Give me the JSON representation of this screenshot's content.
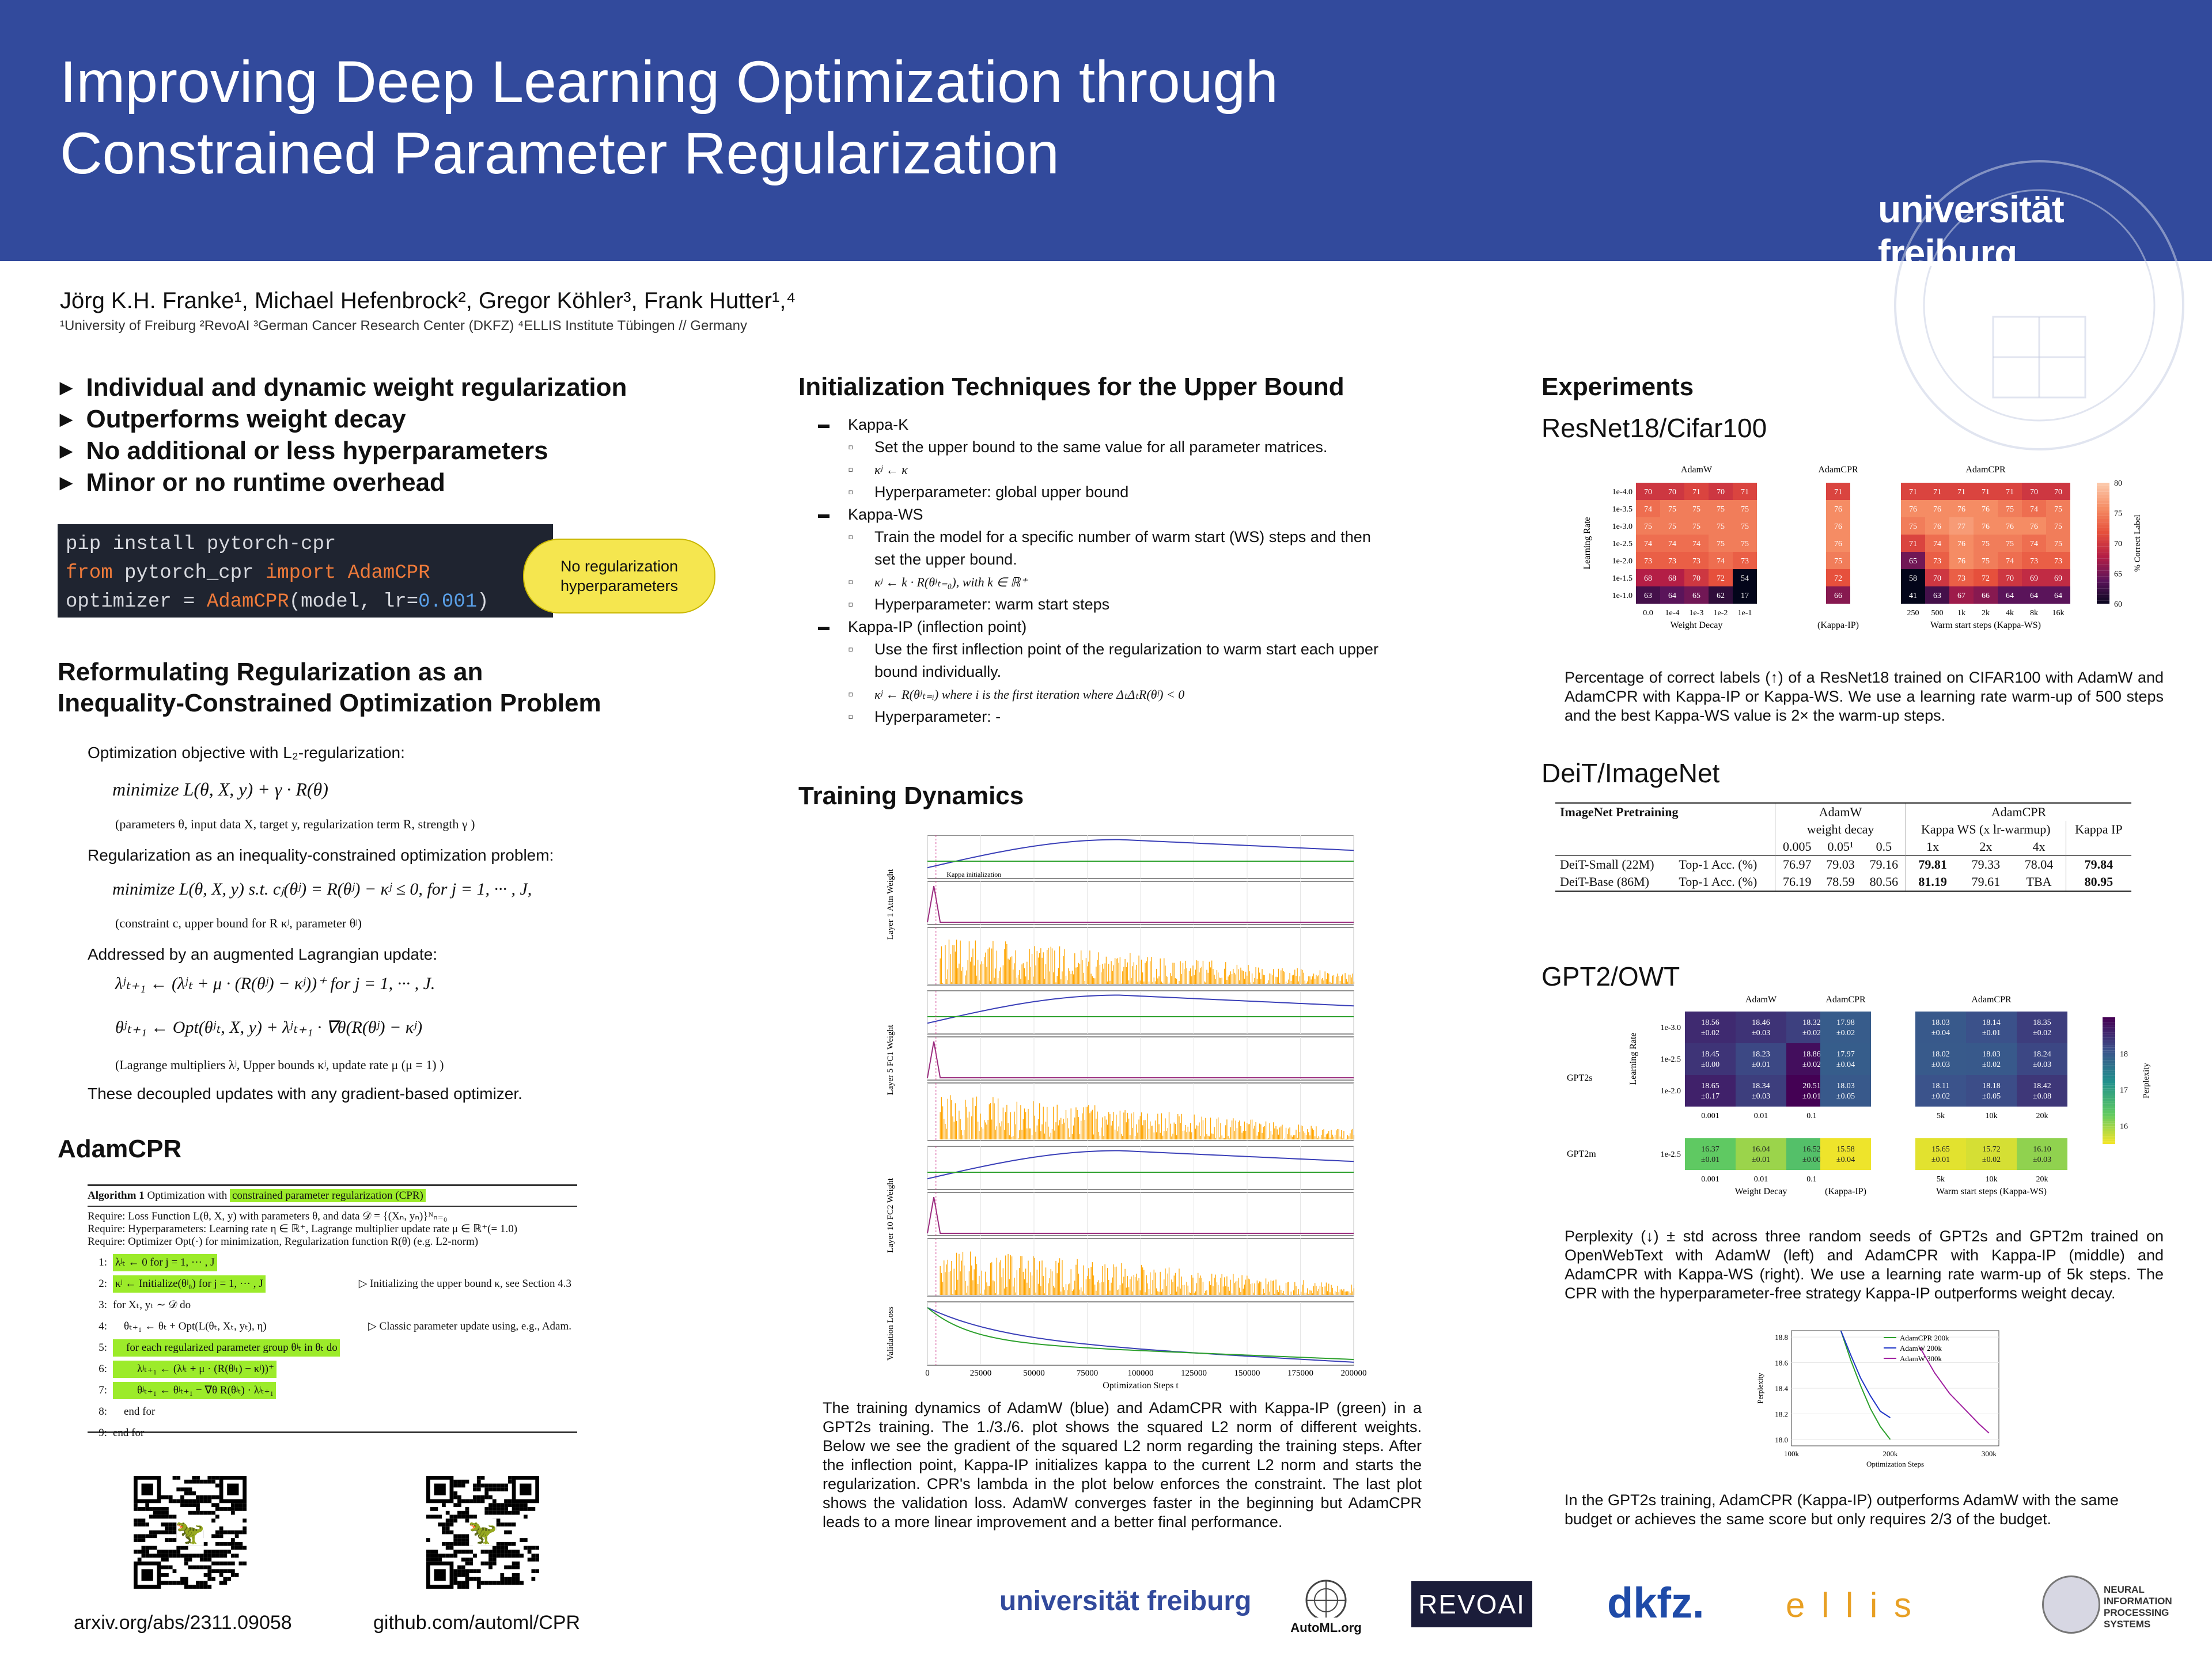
{
  "header": {
    "title_line1": "Improving Deep Learning Optimization through",
    "title_line2": "Constrained Parameter Regularization",
    "uni_wordmark": "universität freiburg"
  },
  "authors": {
    "names": "Jörg K.H. Franke¹, Michael Hefenbrock², Gregor Köhler³, Frank Hutter¹,⁴",
    "affiliations": "¹University of Freiburg  ²RevoAI  ³German Cancer Research Center (DKFZ)  ⁴ELLIS Institute Tübingen  // Germany"
  },
  "bullets": [
    "Individual and dynamic weight regularization",
    "Outperforms weight decay",
    "No additional or less hyperparameters",
    "Minor or no runtime overhead"
  ],
  "code": {
    "line1": "pip install pytorch-cpr",
    "l2_from": "from",
    "l2_mod": " pytorch_cpr ",
    "l2_import": "import",
    "l2_cls": " AdamCPR",
    "l3_a": "optimizer = ",
    "l3_cls": "AdamCPR",
    "l3_b": "(model, lr=",
    "l3_num": "0.001",
    "l3_c": ")",
    "bubble": "No regularization hyperparameters"
  },
  "reform": {
    "heading_line1": "Reformulating Regularization as an",
    "heading_line2": "Inequality-Constrained Optimization Problem",
    "p1": "Optimization objective with L₂-regularization:",
    "eq1": "minimize L(θ, X, y) + γ · R(θ)",
    "eq1_sub": "θ",
    "note1": "(parameters θ, input data X, target y, regularization term R, strength γ )",
    "p2": "Regularization as an inequality-constrained optimization problem:",
    "eq2": "minimize L(θ, X, y)    s.t.    cⱼ(θʲ) = R(θʲ) − κʲ ≤ 0,    for    j = 1, ··· , J,",
    "note2": "(constraint c, upper bound for R κʲ, parameter θʲ)",
    "p3": "Addressed by an augmented Lagrangian update:",
    "eq3": "λʲₜ₊₁ ← (λʲₜ + μ · (R(θʲ) − κʲ))⁺    for    j = 1, ··· , J.",
    "eq4": "θʲₜ₊₁ ← Opt(θʲₜ, X, y) + λʲₜ₊₁ · ∇θ(R(θʲ) − κʲ)",
    "note3": "(Lagrange multipliers λʲ, Upper bounds κʲ, update rate μ (μ = 1) )",
    "p4": "These decoupled updates with any gradient-based optimizer."
  },
  "adamcpr": {
    "heading": "AdamCPR",
    "algo_title_a": "Algorithm 1",
    "algo_title_b": " Optimization with ",
    "algo_title_hl": "constrained parameter regularization (CPR)",
    "req1": "Require: Loss Function L(θ, X, y) with parameters θ, and data 𝒟 = {(Xₙ, yₙ)}ᴺₙ₌₀",
    "req2": "Require: Hyperparameters: Learning rate η ∈ ℝ⁺, Lagrange multiplier update rate μ ∈ ℝ⁺(= 1.0)",
    "req3": "Require: Optimizer Opt(·) for minimization, Regularization function R(θ) (e.g. L2-norm)",
    "lines": [
      {
        "n": "1:",
        "t": "λʲₜ ← 0 for j = 1, ··· , J",
        "hl": true,
        "c": ""
      },
      {
        "n": "2:",
        "t": "κʲ ← Initialize(θʲ₀) for j = 1, ··· , J",
        "hl": true,
        "c": "▷ Initializing the upper bound κ, see Section 4.3"
      },
      {
        "n": "3:",
        "t": "for Xₜ, yₜ ∼ 𝒟 do",
        "hl": false,
        "c": ""
      },
      {
        "n": "4:",
        "t": "    θₜ₊₁ ← θₜ + Opt(L(θₜ, Xₜ, yₜ), η)",
        "hl": false,
        "c": "▷ Classic parameter update using, e.g., Adam."
      },
      {
        "n": "5:",
        "t": "    for each regularized parameter group θʲₜ in θₜ do",
        "hl": true,
        "c": ""
      },
      {
        "n": "6:",
        "t": "        λʲₜ₊₁ ← (λʲₜ + μ · (R(θʲₜ) − κʲ))⁺",
        "hl": true,
        "c": ""
      },
      {
        "n": "7:",
        "t": "        θʲₜ₊₁ ← θʲₜ₊₁ − ∇θ R(θʲₜ) · λʲₜ₊₁",
        "hl": true,
        "c": ""
      },
      {
        "n": "8:",
        "t": "    end for",
        "hl": false,
        "c": ""
      },
      {
        "n": "9:",
        "t": "end for",
        "hl": false,
        "c": ""
      }
    ],
    "link1": "arxiv.org/abs/2311.09058",
    "link2": "github.com/automl/CPR"
  },
  "init": {
    "heading": "Initialization Techniques for the Upper Bound",
    "items": [
      {
        "title": "Kappa-K",
        "subs": [
          "Set the upper bound to the same value for all parameter matrices.",
          "κʲ ← κ",
          "Hyperparameter: global upper bound"
        ]
      },
      {
        "title": "Kappa-WS",
        "subs": [
          "Train the model for a specific number of warm start (WS) steps and then set the upper bound.",
          "κʲ ← k · R(θʲₜ₌₀), with k ∈ ℝ⁺",
          "Hyperparameter: warm start steps"
        ]
      },
      {
        "title": "Kappa-IP (inflection point)",
        "subs": [
          "Use the first inflection point of the regularization to warm start each upper bound individually.",
          "κʲ ← R(θʲₜ₌ᵢ) where i is the first iteration where ΔₜΔₜR(θʲ) < 0",
          "Hyperparameter: -"
        ]
      }
    ]
  },
  "training": {
    "heading": "Training Dynamics",
    "xlabel": "Optimization Steps t",
    "xticks": [
      "0",
      "25000",
      "50000",
      "75000",
      "100000",
      "125000",
      "150000",
      "175000",
      "200000"
    ],
    "panel_labels": [
      "Layer 1 Attn Weight",
      "Layer 5 FC1 Weight",
      "Layer 10 FC2 Weight",
      "Validation Loss"
    ],
    "annotation": "Kappa initialization",
    "caption": "The training dynamics of AdamW (blue) and AdamCPR with Kappa-IP (green) in a GPT2s training. The 1./3./6. plot shows the squared L2 norm of different weights. Below we see the gradient of the squared L2 norm regarding the training steps. After the inflection point, Kappa-IP initializes kappa to the current L2 norm and starts the regularization. CPR's lambda in the plot below enforces the constraint. The last plot shows the validation loss. AdamW converges faster in the beginning but AdamCPR leads to a more linear improvement and a better final performance.",
    "colors": {
      "adamw": "#3a3fb8",
      "cpr": "#2ca02c",
      "lambda": "#ffa500",
      "grad": "#9b2d7f"
    }
  },
  "experiments": {
    "heading": "Experiments",
    "resnet_title": "ResNet18/Cifar100",
    "resnet_caption": "Percentage of correct labels (↑) of a ResNet18 trained on CIFAR100 with AdamW and AdamCPR with Kappa-IP or Kappa-WS. We use a learning rate warm-up of 500 steps and the best Kappa-WS value is 2× the warm-up steps.",
    "deit_title": "DeiT/ImageNet",
    "gpt_title": "GPT2/OWT",
    "gpt_caption": "Perplexity (↓) ± std across three random seeds of GPT2s and GPT2m trained on OpenWebText with AdamW (left) and AdamCPR with Kappa-IP (middle) and AdamCPR with Kappa-WS (right). We use a learning rate warm-up of 5k steps. The CPR with the hyperparameter-free strategy Kappa-IP outperforms weight decay.",
    "gpt_line_caption": "In the GPT2s training, AdamCPR  (Kappa-IP) outperforms AdamW with the same budget or achieves the same score but only requires 2/3 of the budget."
  },
  "chart_data": [
    {
      "type": "heatmap",
      "title": "ResNet18/Cifar100",
      "ylabel": "Learning Rate",
      "colorbar_label": "% Correct Label",
      "colorbar_ticks": [
        60,
        65,
        70,
        75,
        80
      ],
      "rows": [
        "1e-4.0",
        "1e-3.5",
        "1e-3.0",
        "1e-2.5",
        "1e-2.0",
        "1e-1.5",
        "1e-1.0"
      ],
      "groups": [
        {
          "name": "AdamW",
          "xlabel": "Weight Decay",
          "cols": [
            "0.0",
            "1e-4",
            "1e-3",
            "1e-2",
            "1e-1"
          ],
          "values": [
            [
              70,
              70,
              71,
              70,
              71
            ],
            [
              74,
              75,
              75,
              75,
              75
            ],
            [
              75,
              75,
              75,
              75,
              75
            ],
            [
              74,
              74,
              74,
              75,
              75
            ],
            [
              73,
              73,
              73,
              74,
              73
            ],
            [
              68,
              68,
              70,
              72,
              54
            ],
            [
              63,
              64,
              65,
              62,
              17
            ]
          ]
        },
        {
          "name": "AdamCPR",
          "xlabel": "(Kappa-IP)",
          "cols": [
            ""
          ],
          "values": [
            [
              71
            ],
            [
              76
            ],
            [
              76
            ],
            [
              76
            ],
            [
              75
            ],
            [
              72
            ],
            [
              66
            ]
          ]
        },
        {
          "name": "AdamCPR",
          "xlabel": "Warm start steps (Kappa-WS)",
          "cols": [
            "250",
            "500",
            "1k",
            "2k",
            "4k",
            "8k",
            "16k"
          ],
          "values": [
            [
              71,
              71,
              71,
              71,
              71,
              70,
              70
            ],
            [
              76,
              76,
              76,
              76,
              75,
              74,
              75
            ],
            [
              75,
              76,
              77,
              76,
              76,
              76,
              75
            ],
            [
              71,
              74,
              76,
              75,
              75,
              74,
              75
            ],
            [
              65,
              73,
              76,
              75,
              74,
              73,
              73
            ],
            [
              58,
              70,
              73,
              72,
              70,
              69,
              69
            ],
            [
              41,
              63,
              67,
              66,
              64,
              64,
              64
            ]
          ]
        }
      ]
    },
    {
      "type": "table",
      "title": "DeiT/ImageNet",
      "header_left": "ImageNet Pretraining",
      "group_adamw": "AdamW",
      "group_cpr": "AdamCPR",
      "sub_adamw": "weight decay",
      "sub_ws": "Kappa WS",
      "sub_ws2": "(x lr-warmup)",
      "sub_ip": "Kappa IP",
      "cols": [
        "0.005",
        "0.05¹",
        "0.5",
        "1x",
        "2x",
        "4x"
      ],
      "rows": [
        {
          "model": "DeiT-Small (22M)",
          "metric": "Top-1 Acc. (%)",
          "values": [
            "76.97",
            "79.03",
            "79.16",
            "79.81",
            "79.33",
            "78.04",
            "79.84"
          ],
          "bold": [
            3,
            6
          ]
        },
        {
          "model": "DeiT-Base (86M)",
          "metric": "Top-1 Acc. (%)",
          "values": [
            "76.19",
            "78.59",
            "80.56",
            "81.19",
            "79.61",
            "TBA",
            "80.95"
          ],
          "bold": [
            3,
            6
          ]
        }
      ]
    },
    {
      "type": "heatmap",
      "title": "GPT2/OWT",
      "ylabel": "Learning Rate",
      "colorbar_label": "Perplexity",
      "colorbar_ticks": [
        16,
        17,
        18
      ],
      "models": [
        "GPT2s",
        "GPT2m"
      ],
      "rows_gpt2s": [
        "1e-3.0",
        "1e-2.5",
        "1e-2.0"
      ],
      "rows_gpt2m": [
        "1e-2.5"
      ],
      "groups": [
        {
          "name": "AdamW",
          "xlabel": "Weight Decay",
          "cols": [
            "0.001",
            "0.01",
            "0.1"
          ],
          "gpt2s": [
            [
              "18.56 ±0.02",
              "18.46 ±0.03",
              "18.32 ±0.02"
            ],
            [
              "18.45 ±0.00",
              "18.23 ±0.01",
              "18.86 ±0.02"
            ],
            [
              "18.65 ±0.17",
              "18.34 ±0.03",
              "20.51 ±0.01"
            ]
          ],
          "gpt2m": [
            [
              "16.37 ±0.01",
              "16.04 ±0.01",
              "16.52 ±0.00"
            ]
          ]
        },
        {
          "name": "AdamCPR",
          "xlabel": "(Kappa-IP)",
          "cols": [
            ""
          ],
          "gpt2s": [
            [
              "17.98 ±0.02"
            ],
            [
              "17.97 ±0.04"
            ],
            [
              "18.03 ±0.05"
            ]
          ],
          "gpt2m": [
            [
              "15.58 ±0.04"
            ]
          ]
        },
        {
          "name": "AdamCPR",
          "xlabel": "Warm start steps (Kappa-WS)",
          "cols": [
            "5k",
            "10k",
            "20k"
          ],
          "gpt2s": [
            [
              "18.03 ±0.04",
              "18.14 ±0.01",
              "18.35 ±0.02"
            ],
            [
              "18.02 ±0.03",
              "18.03 ±0.02",
              "18.24 ±0.03"
            ],
            [
              "18.11 ±0.02",
              "18.18 ±0.05",
              "18.42 ±0.08"
            ]
          ],
          "gpt2m": [
            [
              "15.65 ±0.01",
              "15.72 ±0.02",
              "16.10 ±0.03"
            ]
          ]
        }
      ]
    },
    {
      "type": "line",
      "ylabel": "Perplexity",
      "xlabel": "Optimization Steps",
      "xticks": [
        "100k",
        "200k",
        "300k"
      ],
      "yticks": [
        "18.0",
        "18.2",
        "18.4",
        "18.6",
        "18.8"
      ],
      "x_range": [
        100000,
        310000
      ],
      "ylim": [
        17.95,
        18.85
      ],
      "series": [
        {
          "name": "AdamCPR 200k",
          "color": "#2ca02c",
          "x": [
            150000,
            160000,
            170000,
            180000,
            190000,
            200000
          ],
          "y": [
            18.85,
            18.62,
            18.42,
            18.24,
            18.1,
            18.0
          ]
        },
        {
          "name": "AdamW 200k",
          "color": "#2036c8",
          "x": [
            150000,
            160000,
            170000,
            180000,
            190000,
            200000
          ],
          "y": [
            18.85,
            18.66,
            18.48,
            18.34,
            18.22,
            18.17
          ]
        },
        {
          "name": "AdamW 300k",
          "color": "#a020a0",
          "x": [
            230000,
            245000,
            260000,
            275000,
            290000,
            300000
          ],
          "y": [
            18.72,
            18.52,
            18.36,
            18.24,
            18.12,
            18.05
          ]
        }
      ]
    }
  ],
  "logos": [
    "universität freiburg",
    "AutoML.org",
    "REVOAI",
    "dkfz.",
    "e l l i s",
    "NEURAL INFORMATION PROCESSING SYSTEMS"
  ]
}
